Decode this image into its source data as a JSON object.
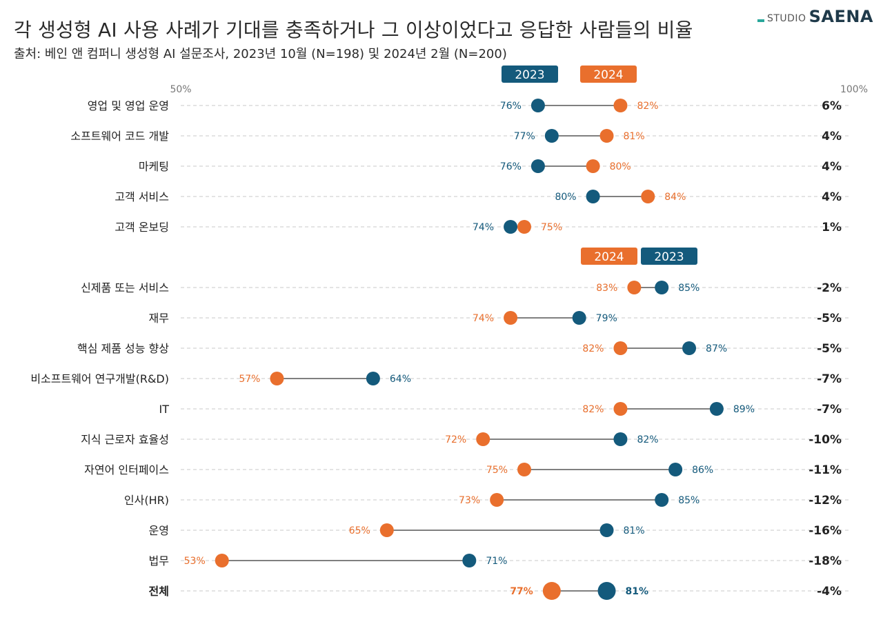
{
  "title": "각 생성형 AI 사용 사례가 기대를 충족하거나 그 이상이었다고 응답한 사람들의 비율",
  "subtitle": "출처: 베인 앤 컴퍼니 생성형 AI 설문조사, 2023년 10월 (N=198) 및 2024년 2월 (N=200)",
  "logo": {
    "studio": "STUDIO",
    "saena": "SAENA"
  },
  "chart_data": {
    "type": "dumbbell",
    "x_range": [
      50,
      100
    ],
    "axis_labels": {
      "min": "50%",
      "max": "100%"
    },
    "colors": {
      "y2023": "#145a7c",
      "y2024": "#e96f2d",
      "grid": "#c8c8c8",
      "line": "#333333",
      "change": "#222222"
    },
    "series": [
      {
        "name": "2023",
        "color": "#145a7c"
      },
      {
        "name": "2024",
        "color": "#e96f2d"
      }
    ],
    "legend_groups": [
      {
        "group": 1,
        "labels": [
          "2023",
          "2024"
        ],
        "keys": [
          "y2023",
          "y2024"
        ]
      },
      {
        "group": 2,
        "labels": [
          "2024",
          "2023"
        ],
        "keys": [
          "y2024",
          "y2023"
        ]
      }
    ],
    "rows": [
      {
        "label": "영업 및 영업 운영",
        "y2023": 76,
        "y2024": 82,
        "change": "6%",
        "group": 1
      },
      {
        "label": "소프트웨어 코드 개발",
        "y2023": 77,
        "y2024": 81,
        "change": "4%",
        "group": 1
      },
      {
        "label": "마케팅",
        "y2023": 76,
        "y2024": 80,
        "change": "4%",
        "group": 1
      },
      {
        "label": "고객 서비스",
        "y2023": 80,
        "y2024": 84,
        "change": "4%",
        "group": 1
      },
      {
        "label": "고객 온보딩",
        "y2023": 74,
        "y2024": 75,
        "change": "1%",
        "group": 1
      },
      {
        "label": "신제품 또는 서비스",
        "y2023": 85,
        "y2024": 83,
        "change": "-2%",
        "group": 2
      },
      {
        "label": "재무",
        "y2023": 79,
        "y2024": 74,
        "change": "-5%",
        "group": 2
      },
      {
        "label": "핵심 제품 성능 향상",
        "y2023": 87,
        "y2024": 82,
        "change": "-5%",
        "group": 2
      },
      {
        "label": "비소프트웨어 연구개발(R&D)",
        "y2023": 64,
        "y2024": 57,
        "change": "-7%",
        "group": 2
      },
      {
        "label": "IT",
        "y2023": 89,
        "y2024": 82,
        "change": "-7%",
        "group": 2
      },
      {
        "label": "지식 근로자 효율성",
        "y2023": 82,
        "y2024": 72,
        "change": "-10%",
        "group": 2
      },
      {
        "label": "자연어 인터페이스",
        "y2023": 86,
        "y2024": 75,
        "change": "-11%",
        "group": 2
      },
      {
        "label": "인사(HR)",
        "y2023": 85,
        "y2024": 73,
        "change": "-12%",
        "group": 2
      },
      {
        "label": "운영",
        "y2023": 81,
        "y2024": 65,
        "change": "-16%",
        "group": 2
      },
      {
        "label": "법무",
        "y2023": 71,
        "y2024": 53,
        "change": "-18%",
        "group": 2
      },
      {
        "label": "전체",
        "y2023": 81,
        "y2024": 77,
        "change": "-4%",
        "group": 2,
        "total": true
      }
    ]
  }
}
